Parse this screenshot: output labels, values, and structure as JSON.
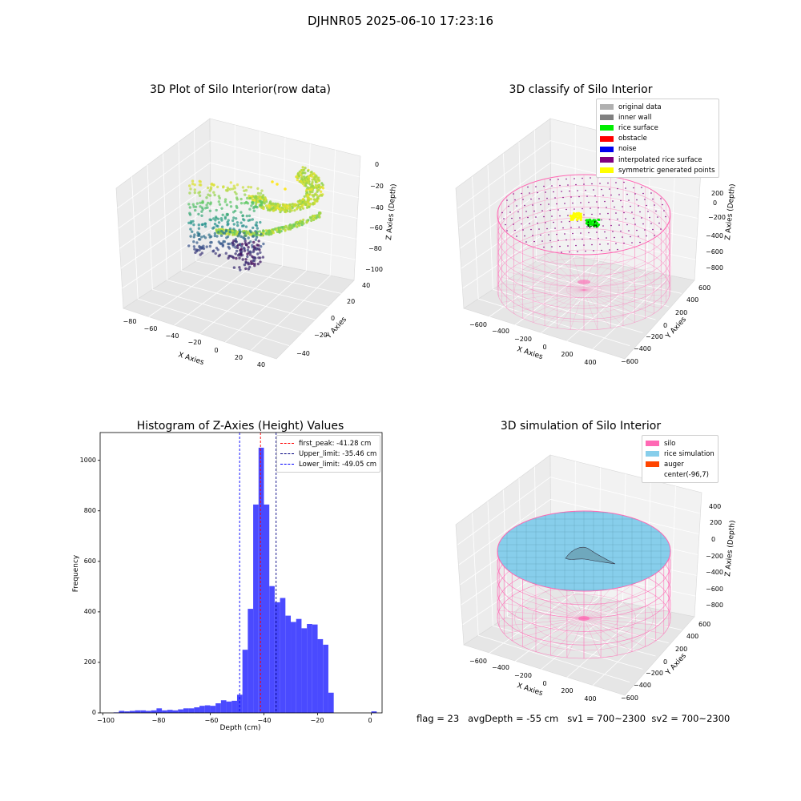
{
  "suptitle": "DJHNR05 2025-06-10 17:23:16",
  "panels": {
    "raw": {
      "title": "3D Plot of Silo Interior(row data)",
      "xlabel": "X Axies",
      "ylabel": "Y Axies",
      "zlabel": "Z Axies (Depth)",
      "xticks": [
        "−80",
        "−60",
        "−40",
        "−20",
        "0",
        "20",
        "40"
      ],
      "yticks": [
        "40",
        "20",
        "0",
        "−20",
        "−40"
      ],
      "zticks": [
        "0",
        "−20",
        "−40",
        "−60",
        "−80",
        "−100"
      ]
    },
    "classify": {
      "title": "3D classify of Silo Interior",
      "xlabel": "X Axies",
      "ylabel": "Y Axies",
      "zlabel": "Z Axies (Depth)",
      "xticks": [
        "−600",
        "−400",
        "−200",
        "0",
        "200",
        "400"
      ],
      "yticks": [
        "600",
        "400",
        "200",
        "0",
        "−200",
        "−400",
        "−600"
      ],
      "zticks": [
        "200",
        "0",
        "−200",
        "−400",
        "−600",
        "−800"
      ],
      "legend": [
        {
          "label": "original data",
          "color": "#b0b0b0"
        },
        {
          "label": "inner wall",
          "color": "#808080"
        },
        {
          "label": "rice surface",
          "color": "#00ee00"
        },
        {
          "label": "obstacle",
          "color": "#ff0000"
        },
        {
          "label": "noise",
          "color": "#0000ee"
        },
        {
          "label": "interpolated rice surface",
          "color": "#800080"
        },
        {
          "label": "symmetric generated points",
          "color": "#ffff00"
        }
      ]
    },
    "histogram": {
      "title": "Histogram of Z-Axies (Height) Values",
      "xlabel": "Depth (cm)",
      "ylabel": "Frequency",
      "xticks": [
        "−100",
        "−80",
        "−60",
        "−40",
        "−20",
        "0"
      ],
      "yticks": [
        "0",
        "200",
        "400",
        "600",
        "800",
        "1000"
      ],
      "legend": [
        {
          "label": "first_peak: -41.28 cm",
          "color": "#ff0000"
        },
        {
          "label": "Upper_limit: -35.46 cm",
          "color": "#000080"
        },
        {
          "label": "Lower_limit: -49.05 cm",
          "color": "#0000ff"
        }
      ]
    },
    "simulation": {
      "title": "3D simulation of Silo Interior",
      "xlabel": "X Axies",
      "ylabel": "Y Axies",
      "zlabel": "Z Axies (Depth)",
      "xticks": [
        "−600",
        "−400",
        "−200",
        "0",
        "200",
        "400"
      ],
      "yticks": [
        "600",
        "400",
        "200",
        "0",
        "−200",
        "−400",
        "−600"
      ],
      "zticks": [
        "400",
        "200",
        "0",
        "−200",
        "−400",
        "−600",
        "−800"
      ],
      "legend": [
        {
          "label": "silo",
          "color": "#ff69b4"
        },
        {
          "label": "rice simulation",
          "color": "#87ceeb"
        },
        {
          "label": "auger",
          "color": "#ff4500"
        },
        {
          "label": "center(-96,7)",
          "color": ""
        }
      ]
    }
  },
  "footer": "flag = 23   avgDepth = -55 cm   sv1 = 700~2300  sv2 = 700~2300",
  "chart_data": [
    {
      "type": "bar",
      "title": "Histogram of Z-Axies (Height) Values",
      "xlabel": "Depth (cm)",
      "ylabel": "Frequency",
      "xlim": [
        -101,
        4
      ],
      "ylim": [
        0,
        1110
      ],
      "bar_color": "#4a4aff",
      "bin_width": 2,
      "bin_starts": [
        -96,
        -94,
        -92,
        -90,
        -88,
        -86,
        -84,
        -82,
        -80,
        -78,
        -76,
        -74,
        -72,
        -70,
        -68,
        -66,
        -64,
        -62,
        -60,
        -58,
        -56,
        -54,
        -52,
        -50,
        -48,
        -46,
        -44,
        -42,
        -40,
        -38,
        -36,
        -34,
        -32,
        -30,
        -28,
        -26,
        -24,
        -22,
        -20,
        -18,
        -16,
        -14,
        -12,
        -10,
        -8,
        -6,
        -4,
        -2,
        0
      ],
      "values": [
        2,
        8,
        6,
        8,
        10,
        10,
        8,
        10,
        18,
        10,
        12,
        10,
        14,
        18,
        18,
        22,
        28,
        30,
        28,
        38,
        50,
        45,
        48,
        72,
        250,
        412,
        825,
        1050,
        825,
        502,
        438,
        455,
        385,
        360,
        372,
        335,
        352,
        350,
        292,
        270,
        80,
        0,
        0,
        0,
        0,
        0,
        0,
        0,
        6
      ],
      "vlines": [
        {
          "name": "first_peak",
          "x": -41.28,
          "color": "#ff0000"
        },
        {
          "name": "Upper_limit",
          "x": -35.46,
          "color": "#000080"
        },
        {
          "name": "Lower_limit",
          "x": -49.05,
          "color": "#0000ff"
        }
      ]
    },
    {
      "type": "scatter",
      "title": "3D Plot of Silo Interior(row data)",
      "xlim": [
        -85,
        45
      ],
      "ylim": [
        -45,
        45
      ],
      "zlim": [
        -105,
        5
      ]
    },
    {
      "type": "scatter",
      "title": "3D classify of Silo Interior",
      "xlim": [
        -700,
        500
      ],
      "ylim": [
        -650,
        650
      ],
      "zlim": [
        -850,
        300
      ]
    },
    {
      "type": "area",
      "title": "3D simulation of Silo Interior",
      "xlim": [
        -700,
        500
      ],
      "ylim": [
        -650,
        650
      ],
      "zlim": [
        -850,
        450
      ]
    }
  ]
}
